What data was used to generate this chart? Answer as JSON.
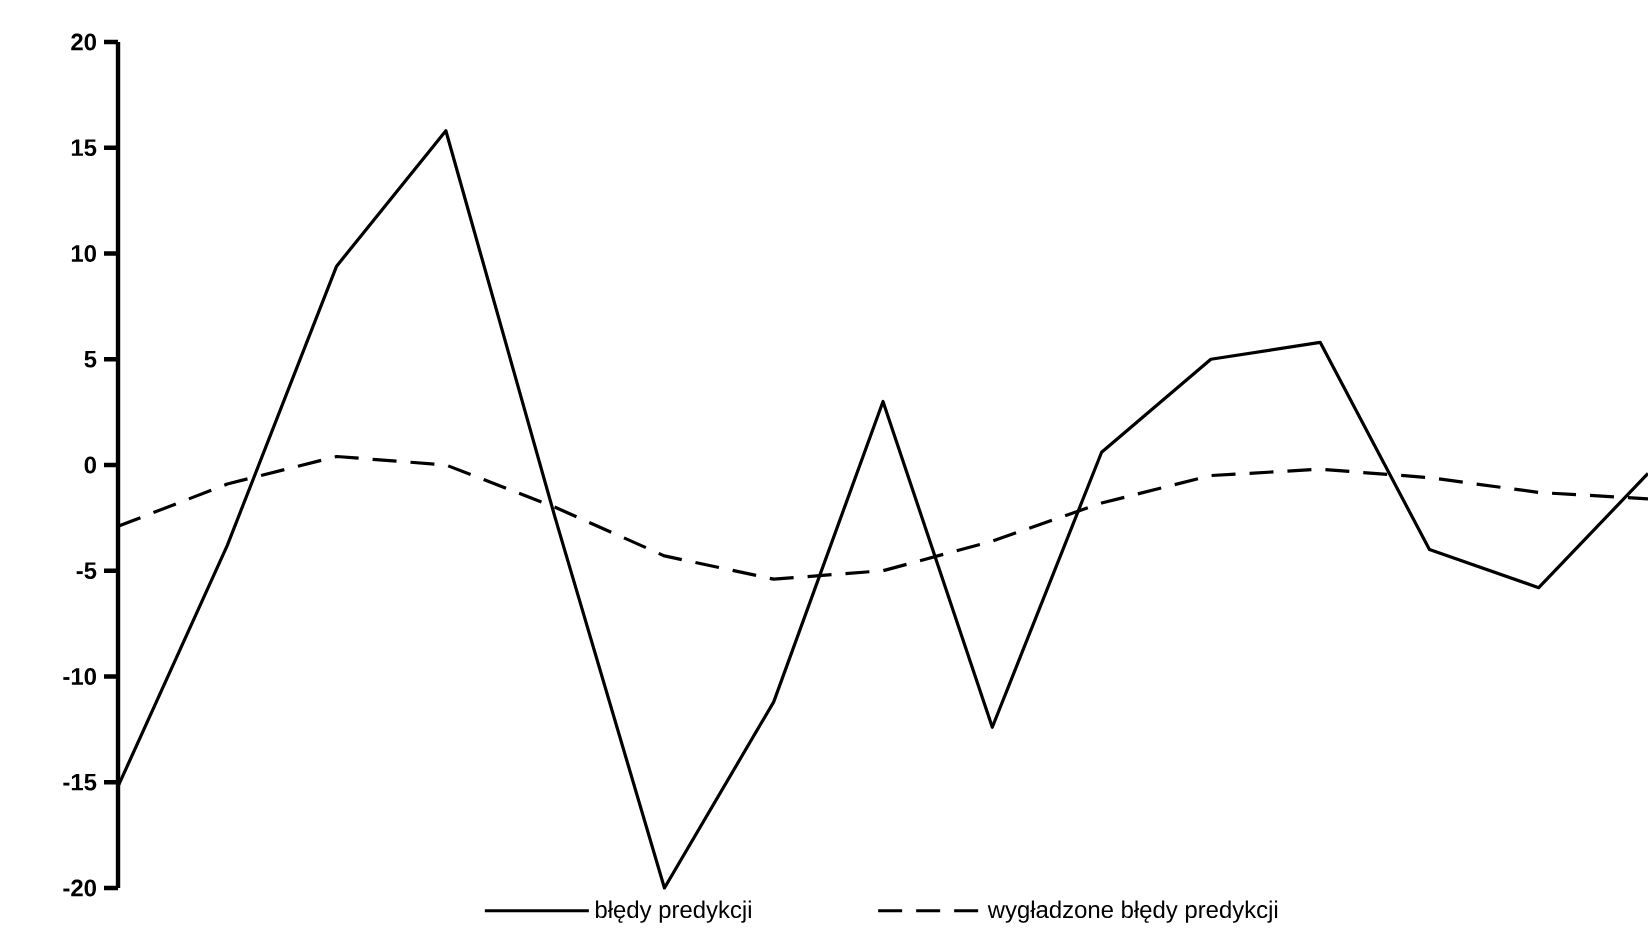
{
  "chart_data": {
    "type": "line",
    "categories": [
      null,
      null,
      null,
      null,
      null,
      null,
      null,
      null,
      null,
      null,
      null,
      null,
      null,
      null,
      null
    ],
    "series": [
      {
        "name": "błędy predykcji",
        "color": "#000000",
        "line_style": "solid",
        "values": [
          -15.2,
          -3.8,
          9.4,
          15.8,
          -2.5,
          -20,
          -11.2,
          3.0,
          -12.4,
          0.6,
          5.0,
          5.8,
          -4.0,
          -5.8,
          -0.4
        ]
      },
      {
        "name": "wygładzone błędy predykcji",
        "color": "#000000",
        "line_style": "dashed",
        "values": [
          -2.9,
          -0.9,
          0.4,
          0.0,
          -2.0,
          -4.3,
          -5.4,
          -5.0,
          -3.6,
          -1.8,
          -0.5,
          -0.2,
          -0.6,
          -1.3,
          -1.6
        ]
      }
    ],
    "ylim": [
      -20,
      20
    ],
    "yticks": [
      -20,
      -15,
      -10,
      -5,
      0,
      5,
      10,
      15,
      20
    ],
    "grid": false,
    "legend": "bottom",
    "marker": "none",
    "tick_labels": "y"
  }
}
